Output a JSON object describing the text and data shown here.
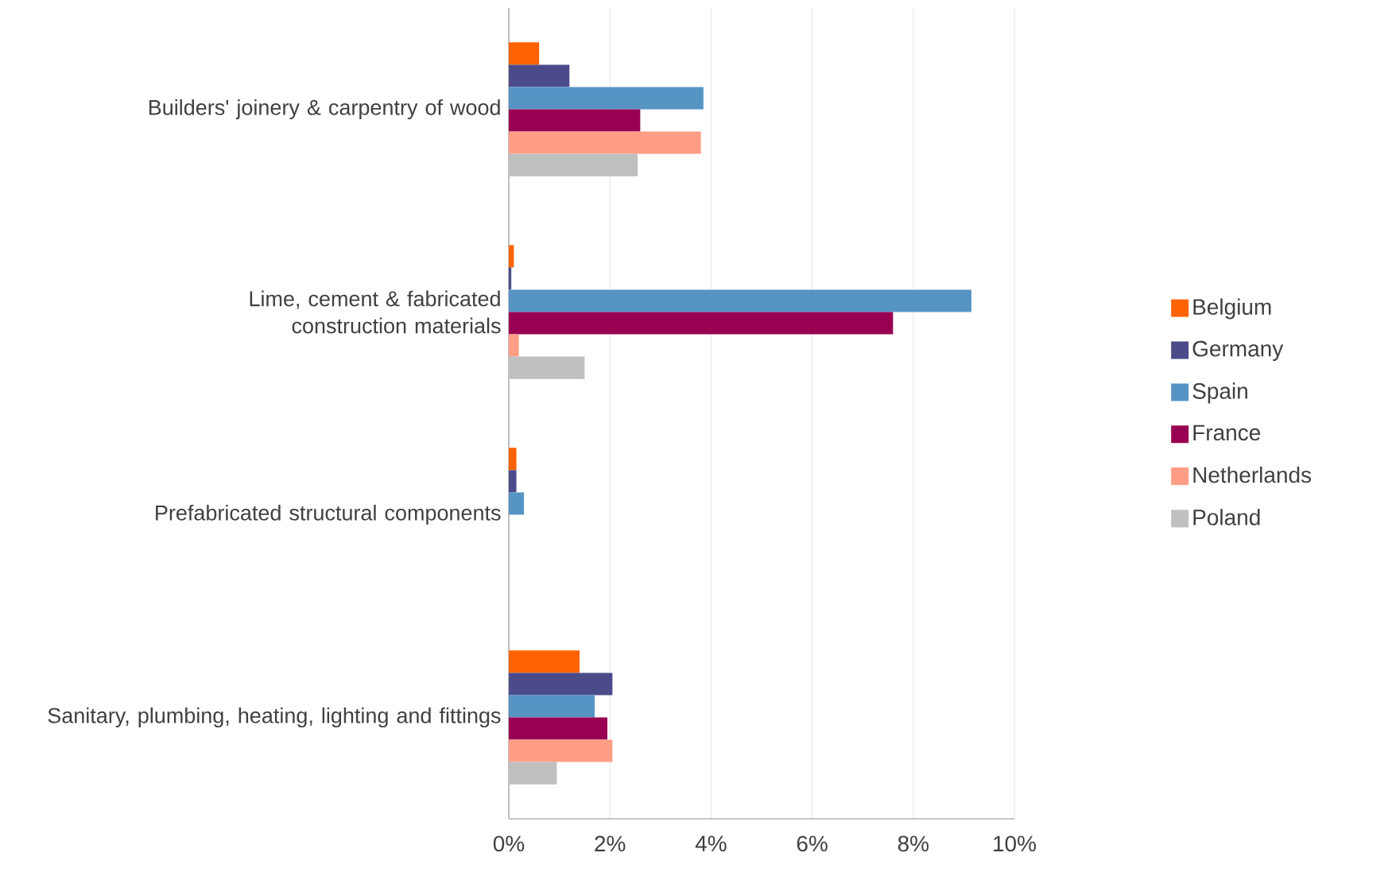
{
  "chart_data": {
    "type": "bar",
    "orientation": "horizontal",
    "categories": [
      "Builders' joinery & carpentry of wood",
      "Lime, cement & fabricated construction materials",
      "Prefabricated structural components",
      "Sanitary, plumbing, heating, lighting and fittings"
    ],
    "series": [
      {
        "name": "Belgium",
        "color": "#ff6200",
        "values": [
          0.6,
          0.1,
          0.15,
          1.4
        ]
      },
      {
        "name": "Germany",
        "color": "#4b4b8a",
        "values": [
          1.2,
          0.05,
          0.15,
          2.05
        ]
      },
      {
        "name": "Spain",
        "color": "#5694c4",
        "values": [
          3.85,
          9.15,
          0.3,
          1.7
        ]
      },
      {
        "name": "France",
        "color": "#990052",
        "values": [
          2.6,
          7.6,
          0,
          1.95
        ]
      },
      {
        "name": "Netherlands",
        "color": "#ff9d85",
        "values": [
          3.8,
          0.2,
          0,
          2.05
        ]
      },
      {
        "name": "Poland",
        "color": "#c0c0c0",
        "values": [
          2.55,
          1.5,
          0,
          0.95
        ]
      }
    ],
    "xlim": [
      0,
      10
    ],
    "xticks": [
      {
        "value": 0,
        "label": "0%"
      },
      {
        "value": 2,
        "label": "2%"
      },
      {
        "value": 4,
        "label": "4%"
      },
      {
        "value": 6,
        "label": "6%"
      },
      {
        "value": 8,
        "label": "8%"
      },
      {
        "value": 10,
        "label": "10%"
      }
    ],
    "grid": "x",
    "legend": "right"
  }
}
